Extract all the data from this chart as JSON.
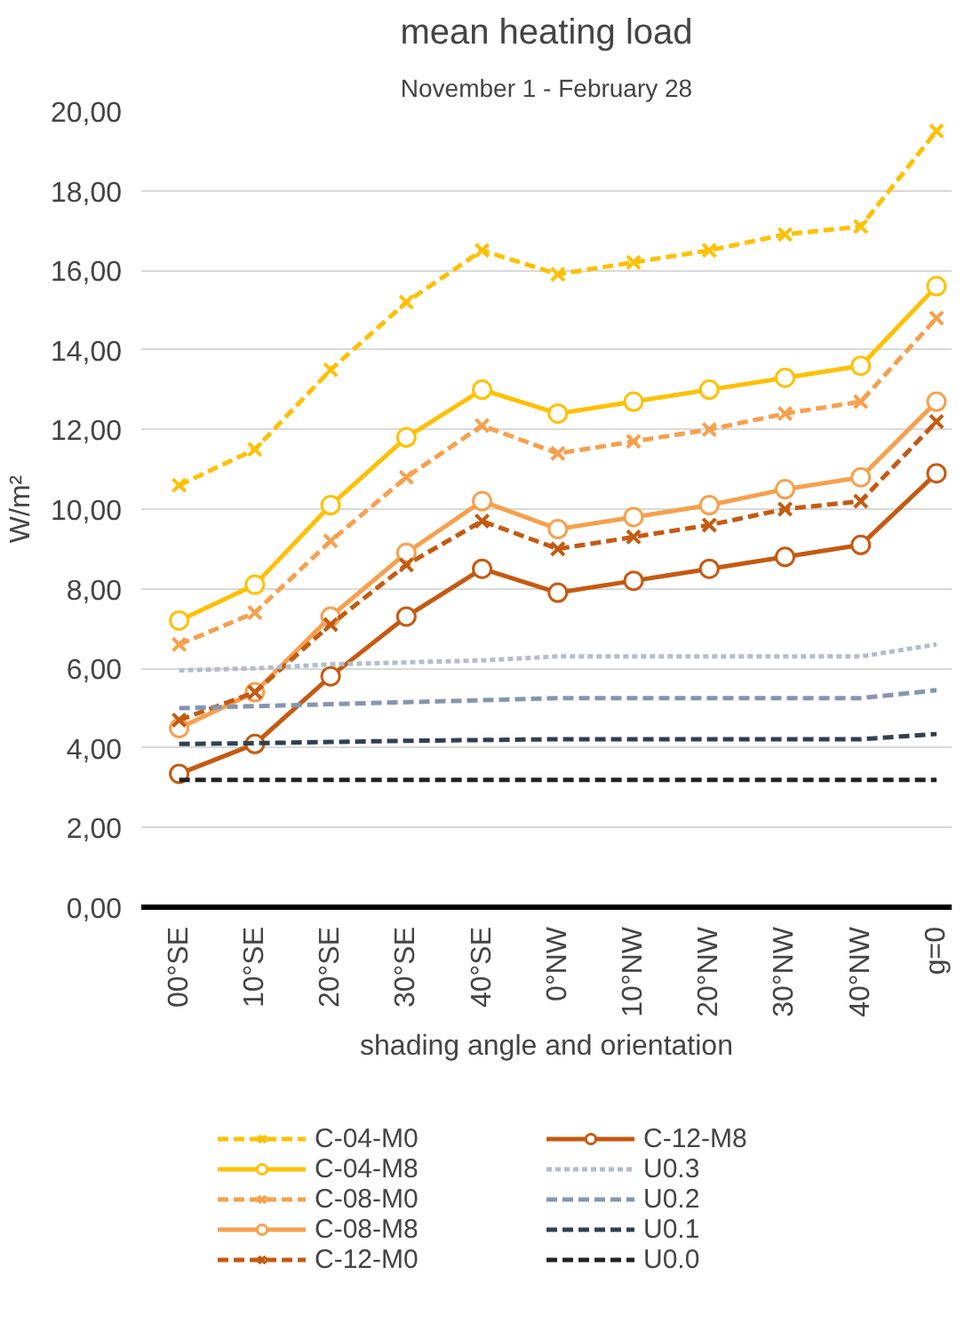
{
  "chart_data": {
    "type": "line",
    "title": "mean heating load",
    "subtitle": "November 1 - February 28",
    "xlabel": "shading angle and orientation",
    "ylabel": "W/m²",
    "categories": [
      "00°SE",
      "10°SE",
      "20°SE",
      "30°SE",
      "40°SE",
      "0°NW",
      "10°NW",
      "20°NW",
      "30°NW",
      "40°NW",
      "g=0"
    ],
    "ylim": [
      0,
      20
    ],
    "yticks": [
      {
        "value": 0,
        "label": "0,00"
      },
      {
        "value": 2,
        "label": "2,00"
      },
      {
        "value": 4,
        "label": "4,00"
      },
      {
        "value": 6,
        "label": "6,00"
      },
      {
        "value": 8,
        "label": "8,00"
      },
      {
        "value": 10,
        "label": "10,00"
      },
      {
        "value": 12,
        "label": "12,00"
      },
      {
        "value": 14,
        "label": "14,00"
      },
      {
        "value": 16,
        "label": "16,00"
      },
      {
        "value": 18,
        "label": "18,00"
      },
      {
        "value": 20,
        "label": "20,00"
      }
    ],
    "grid": "y",
    "legend": "bottom",
    "series": [
      {
        "name": "C-04-M0",
        "color": "#ffc000",
        "marker": "cross",
        "line_style": "dashed",
        "values": [
          10.6,
          11.5,
          13.5,
          15.2,
          16.5,
          15.9,
          16.2,
          16.5,
          16.9,
          17.1,
          19.5
        ]
      },
      {
        "name": "C-04-M8",
        "color": "#ffc000",
        "marker": "circle",
        "line_style": "solid",
        "values": [
          7.2,
          8.1,
          10.1,
          11.8,
          13.0,
          12.4,
          12.7,
          13.0,
          13.3,
          13.6,
          15.6
        ]
      },
      {
        "name": "C-08-M0",
        "color": "#f6a04d",
        "marker": "cross",
        "line_style": "dashed",
        "values": [
          6.6,
          7.4,
          9.2,
          10.8,
          12.1,
          11.4,
          11.7,
          12.0,
          12.4,
          12.7,
          14.8
        ]
      },
      {
        "name": "C-08-M8",
        "color": "#f6a04d",
        "marker": "circle",
        "line_style": "solid",
        "values": [
          4.5,
          5.4,
          7.3,
          8.9,
          10.2,
          9.5,
          9.8,
          10.1,
          10.5,
          10.8,
          12.7
        ]
      },
      {
        "name": "C-12-M0",
        "color": "#c55a11",
        "marker": "cross",
        "line_style": "dashed",
        "values": [
          4.7,
          5.4,
          7.1,
          8.6,
          9.7,
          9.0,
          9.3,
          9.6,
          10.0,
          10.2,
          12.2
        ]
      },
      {
        "name": "C-12-M8",
        "color": "#c55a11",
        "marker": "circle",
        "line_style": "solid",
        "values": [
          3.35,
          4.1,
          5.8,
          7.3,
          8.5,
          7.9,
          8.2,
          8.5,
          8.8,
          9.1,
          10.9
        ]
      },
      {
        "name": "U0.3",
        "color": "#b4bccc",
        "marker": "none",
        "line_style": "dotted",
        "values": [
          5.95,
          6.0,
          6.1,
          6.15,
          6.2,
          6.3,
          6.3,
          6.3,
          6.3,
          6.3,
          6.6
        ]
      },
      {
        "name": "U0.2",
        "color": "#8496b0",
        "marker": "none",
        "line_style": "dashed",
        "values": [
          5.0,
          5.05,
          5.1,
          5.15,
          5.2,
          5.25,
          5.25,
          5.25,
          5.25,
          5.25,
          5.45
        ]
      },
      {
        "name": "U0.1",
        "color": "#333f50",
        "marker": "none",
        "line_style": "dashed",
        "values": [
          4.1,
          4.12,
          4.15,
          4.18,
          4.2,
          4.22,
          4.22,
          4.22,
          4.22,
          4.22,
          4.35
        ]
      },
      {
        "name": "U0.0",
        "color": "#222222",
        "marker": "none",
        "line_style": "dashed",
        "values": [
          3.2,
          3.2,
          3.2,
          3.2,
          3.2,
          3.2,
          3.2,
          3.2,
          3.2,
          3.2,
          3.2
        ]
      }
    ]
  }
}
